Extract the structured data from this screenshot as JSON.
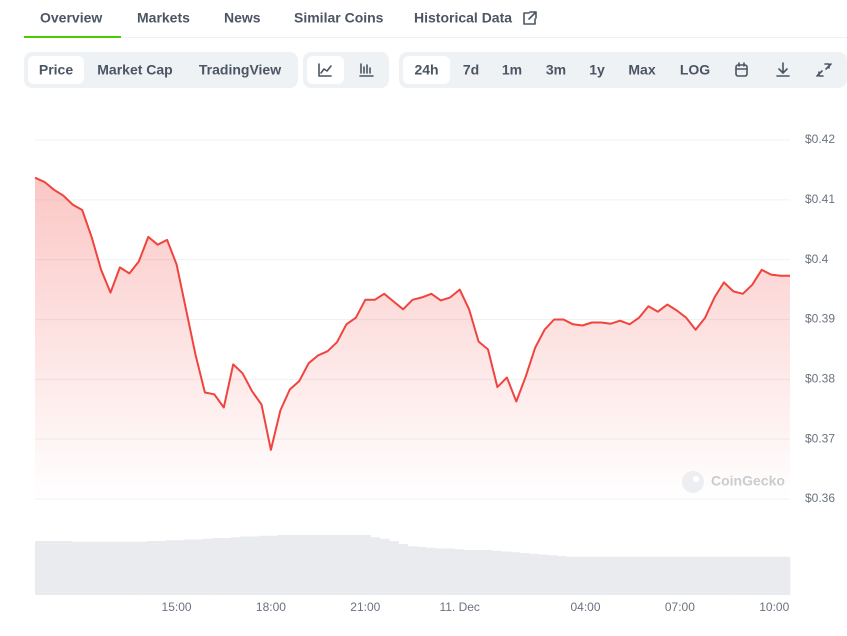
{
  "tabs": {
    "items": [
      "Overview",
      "Markets",
      "News",
      "Similar Coins",
      "Historical Data"
    ],
    "active": 0
  },
  "toolbar": {
    "views": [
      "Price",
      "Market Cap",
      "TradingView"
    ],
    "active_view": 0,
    "ranges": [
      "24h",
      "7d",
      "1m",
      "3m",
      "1y",
      "Max",
      "LOG"
    ],
    "active_range": 0
  },
  "chart_data": {
    "type": "line",
    "area_fill": true,
    "grid": true,
    "watermark": "CoinGecko",
    "x": [
      10.5,
      10.8,
      11.1,
      11.4,
      11.7,
      12,
      12.3,
      12.6,
      12.9,
      13.2,
      13.5,
      13.8,
      14.1,
      14.4,
      14.7,
      15,
      15.3,
      15.6,
      15.9,
      16.2,
      16.5,
      16.8,
      17.1,
      17.4,
      17.7,
      18,
      18.3,
      18.6,
      18.9,
      19.2,
      19.5,
      19.8,
      20.1,
      20.4,
      20.7,
      21,
      21.3,
      21.6,
      21.9,
      22.2,
      22.5,
      22.8,
      23.1,
      23.4,
      23.7,
      24,
      24.3,
      24.6,
      24.9,
      25.2,
      25.5,
      25.8,
      26.1,
      26.4,
      26.7,
      27,
      27.3,
      27.6,
      27.9,
      28.2,
      28.5,
      28.8,
      29.1,
      29.4,
      29.7,
      30,
      30.3,
      30.6,
      30.9,
      31.2,
      31.5,
      31.8,
      32.1,
      32.4,
      32.7,
      33,
      33.3,
      33.6,
      33.9,
      34.2,
      34.5
    ],
    "xlim": [
      10.5,
      34.5
    ],
    "xticks": [
      {
        "value": 15,
        "label": "15:00"
      },
      {
        "value": 18,
        "label": "18:00"
      },
      {
        "value": 21,
        "label": "21:00"
      },
      {
        "value": 24,
        "label": "11. Dec"
      },
      {
        "value": 28,
        "label": "04:00"
      },
      {
        "value": 31,
        "label": "07:00"
      },
      {
        "value": 34,
        "label": "10:00"
      }
    ],
    "ylim": [
      0.36,
      0.42
    ],
    "yticks": [
      {
        "value": 0.36,
        "label": "$0.36"
      },
      {
        "value": 0.37,
        "label": "$0.37"
      },
      {
        "value": 0.38,
        "label": "$0.38"
      },
      {
        "value": 0.39,
        "label": "$0.39"
      },
      {
        "value": 0.4,
        "label": "$0.4"
      },
      {
        "value": 0.41,
        "label": "$0.41"
      },
      {
        "value": 0.42,
        "label": "$0.42"
      }
    ],
    "series": [
      {
        "color": "#f0443e",
        "values": [
          0.4137,
          0.413,
          0.4117,
          0.4107,
          0.4092,
          0.4083,
          0.4038,
          0.3983,
          0.3945,
          0.3987,
          0.3977,
          0.3997,
          0.4038,
          0.4025,
          0.4033,
          0.3992,
          0.3917,
          0.3842,
          0.3778,
          0.3775,
          0.3753,
          0.3825,
          0.381,
          0.378,
          0.3758,
          0.3682,
          0.3748,
          0.3783,
          0.3797,
          0.3827,
          0.384,
          0.3847,
          0.3862,
          0.3892,
          0.3903,
          0.3933,
          0.3933,
          0.3943,
          0.393,
          0.3917,
          0.3933,
          0.3937,
          0.3943,
          0.3932,
          0.3937,
          0.395,
          0.3917,
          0.3863,
          0.385,
          0.3787,
          0.3803,
          0.3763,
          0.3805,
          0.3853,
          0.3883,
          0.39,
          0.39,
          0.3892,
          0.389,
          0.3895,
          0.3895,
          0.3893,
          0.3898,
          0.3892,
          0.3903,
          0.3922,
          0.3913,
          0.3925,
          0.3915,
          0.3903,
          0.3883,
          0.3903,
          0.3937,
          0.3962,
          0.3947,
          0.3943,
          0.3958,
          0.3983,
          0.3975,
          0.3973,
          0.3973
        ]
      }
    ],
    "volume": {
      "color": "#e9ebee",
      "ylim": [
        0,
        100
      ],
      "values": [
        72,
        72,
        72,
        72,
        71,
        71,
        71,
        71,
        71,
        71,
        71,
        71,
        72,
        72,
        73,
        73,
        74,
        74,
        75,
        76,
        76,
        77,
        78,
        78,
        79,
        79,
        80,
        80,
        80,
        80,
        80,
        80,
        80,
        80,
        80,
        80,
        77,
        75,
        72,
        68,
        65,
        64,
        63,
        62,
        62,
        61,
        60,
        60,
        60,
        59,
        58,
        57,
        56,
        55,
        54,
        53,
        52,
        51,
        51,
        51,
        51,
        51,
        51,
        51,
        51,
        51,
        51,
        51,
        51,
        51,
        51,
        51,
        51,
        51,
        51,
        51,
        51,
        51,
        51,
        51,
        51
      ]
    }
  }
}
